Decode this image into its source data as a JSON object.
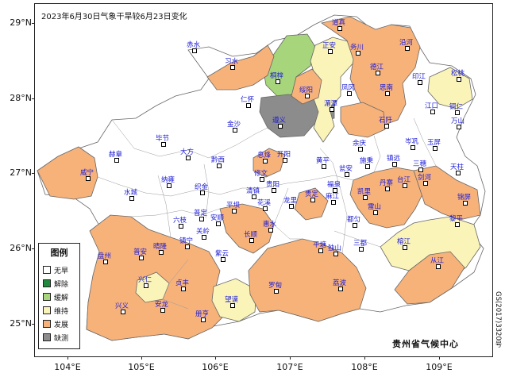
{
  "title": "2023年6月30日气象干旱较6月23日变化",
  "credit": "贵州省气候中心",
  "approval_number": "GS(2017)3320号",
  "lat_labels": [
    "29°N",
    "28°N",
    "27°N",
    "26°N",
    "25°N"
  ],
  "lon_labels": [
    "104°E",
    "105°E",
    "106°E",
    "107°E",
    "108°E",
    "109°E"
  ],
  "legend": {
    "title": "图例",
    "items": [
      {
        "label": "无旱",
        "color": "#ffffff"
      },
      {
        "label": "解除",
        "color": "#1f8a3c"
      },
      {
        "label": "缓解",
        "color": "#a6d57c"
      },
      {
        "label": "维持",
        "color": "#fbf4b8"
      },
      {
        "label": "发展",
        "color": "#f7b27a"
      },
      {
        "label": "缺测",
        "color": "#8c8c8c"
      }
    ]
  },
  "cities": [
    {
      "name": "道真",
      "status": "发展"
    },
    {
      "name": "务川",
      "status": "发展"
    },
    {
      "name": "沿河",
      "status": "发展"
    },
    {
      "name": "正安",
      "status": "维持"
    },
    {
      "name": "赤水",
      "status": "无旱"
    },
    {
      "name": "习水",
      "status": "发展"
    },
    {
      "name": "桐梓",
      "status": "缓解"
    },
    {
      "name": "绥阳",
      "status": "发展"
    },
    {
      "name": "凤冈",
      "status": "维持"
    },
    {
      "name": "德江",
      "status": "发展"
    },
    {
      "name": "印江",
      "status": "无旱"
    },
    {
      "name": "松桃",
      "status": "维持"
    },
    {
      "name": "思南",
      "status": "发展"
    },
    {
      "name": "江口",
      "status": "无旱"
    },
    {
      "name": "铜仁",
      "status": "无旱"
    },
    {
      "name": "仁怀",
      "status": "无旱"
    },
    {
      "name": "湄潭",
      "status": "维持"
    },
    {
      "name": "石阡",
      "status": "发展"
    },
    {
      "name": "万山",
      "status": "无旱"
    },
    {
      "name": "遵义",
      "status": "缺测"
    },
    {
      "name": "金沙",
      "status": "无旱"
    },
    {
      "name": "余庆",
      "status": "无旱"
    },
    {
      "name": "岑巩",
      "status": "无旱"
    },
    {
      "name": "玉屏",
      "status": "无旱"
    },
    {
      "name": "毕节",
      "status": "无旱"
    },
    {
      "name": "大方",
      "status": "无旱"
    },
    {
      "name": "息烽",
      "status": "发展"
    },
    {
      "name": "开阳",
      "status": "无旱"
    },
    {
      "name": "施秉",
      "status": "无旱"
    },
    {
      "name": "镇远",
      "status": "无旱"
    },
    {
      "name": "三穗",
      "status": "无旱"
    },
    {
      "name": "赫章",
      "status": "无旱"
    },
    {
      "name": "黔西",
      "status": "无旱"
    },
    {
      "name": "黄平",
      "status": "无旱"
    },
    {
      "name": "天柱",
      "status": "无旱"
    },
    {
      "name": "威宁",
      "status": "发展"
    },
    {
      "name": "纳雍",
      "status": "无旱"
    },
    {
      "name": "修文",
      "status": "无旱"
    },
    {
      "name": "瓮安",
      "status": "无旱"
    },
    {
      "name": "台江",
      "status": "发展"
    },
    {
      "name": "剑河",
      "status": "发展"
    },
    {
      "name": "锦屏",
      "status": "发展"
    },
    {
      "name": "织金",
      "status": "无旱"
    },
    {
      "name": "清镇",
      "status": "无旱"
    },
    {
      "name": "贵阳",
      "status": "无旱"
    },
    {
      "name": "龙里",
      "status": "无旱"
    },
    {
      "name": "麻江",
      "status": "无旱"
    },
    {
      "name": "凯里",
      "status": "发展"
    },
    {
      "name": "雷山",
      "status": "发展"
    },
    {
      "name": "水城",
      "status": "无旱"
    },
    {
      "name": "六枝",
      "status": "无旱"
    },
    {
      "name": "普定",
      "status": "无旱"
    },
    {
      "name": "安顺",
      "status": "无旱"
    },
    {
      "name": "平坝",
      "status": "发展"
    },
    {
      "name": "花溪",
      "status": "无旱"
    },
    {
      "name": "贵定",
      "status": "发展"
    },
    {
      "name": "福泉",
      "status": "无旱"
    },
    {
      "name": "都匀",
      "status": "无旱"
    },
    {
      "name": "丹寨",
      "status": "无旱"
    },
    {
      "name": "榕江",
      "status": "维持"
    },
    {
      "name": "黎平",
      "status": "维持"
    },
    {
      "name": "惠水",
      "status": "无旱"
    },
    {
      "name": "长顺",
      "status": "发展"
    },
    {
      "name": "镇宁",
      "status": "发展"
    },
    {
      "name": "关岭",
      "status": "发展"
    },
    {
      "name": "紫云",
      "status": "无旱"
    },
    {
      "name": "盘州",
      "status": "发展"
    },
    {
      "name": "普安",
      "status": "发展"
    },
    {
      "name": "晴隆",
      "status": "发展"
    },
    {
      "name": "平塘",
      "status": "发展"
    },
    {
      "name": "独山",
      "status": "发展"
    },
    {
      "name": "三都",
      "status": "无旱"
    },
    {
      "name": "从江",
      "status": "发展"
    },
    {
      "name": "兴仁",
      "status": "维持"
    },
    {
      "name": "贞丰",
      "status": "发展"
    },
    {
      "name": "罗甸",
      "status": "发展"
    },
    {
      "name": "荔波",
      "status": "发展"
    },
    {
      "name": "望谟",
      "status": "维持"
    },
    {
      "name": "兴义",
      "status": "发展"
    },
    {
      "name": "安龙",
      "status": "发展"
    },
    {
      "name": "册亨",
      "status": "无旱"
    }
  ]
}
